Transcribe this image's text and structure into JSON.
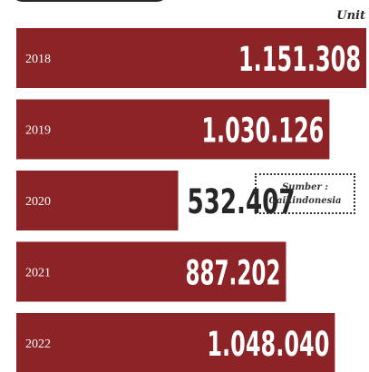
{
  "unit_label": "Unit",
  "source": {
    "line1": "Sumber :",
    "line2": "Gaikindonesia"
  },
  "colors": {
    "bar": "#8c2326",
    "value_on_bar": "#ffffff",
    "value_off_bar": "#262626",
    "year_label": "#ffffff"
  },
  "chart_data": {
    "type": "bar",
    "orientation": "horizontal",
    "categories": [
      "2018",
      "2019",
      "2020",
      "2021",
      "2022"
    ],
    "values": [
      1151308,
      1030126,
      532407,
      887202,
      1048040
    ],
    "value_labels": [
      "1.151.308",
      "1.030.126",
      "532.407",
      "887.202",
      "1.048.040"
    ],
    "unit": "Unit"
  }
}
